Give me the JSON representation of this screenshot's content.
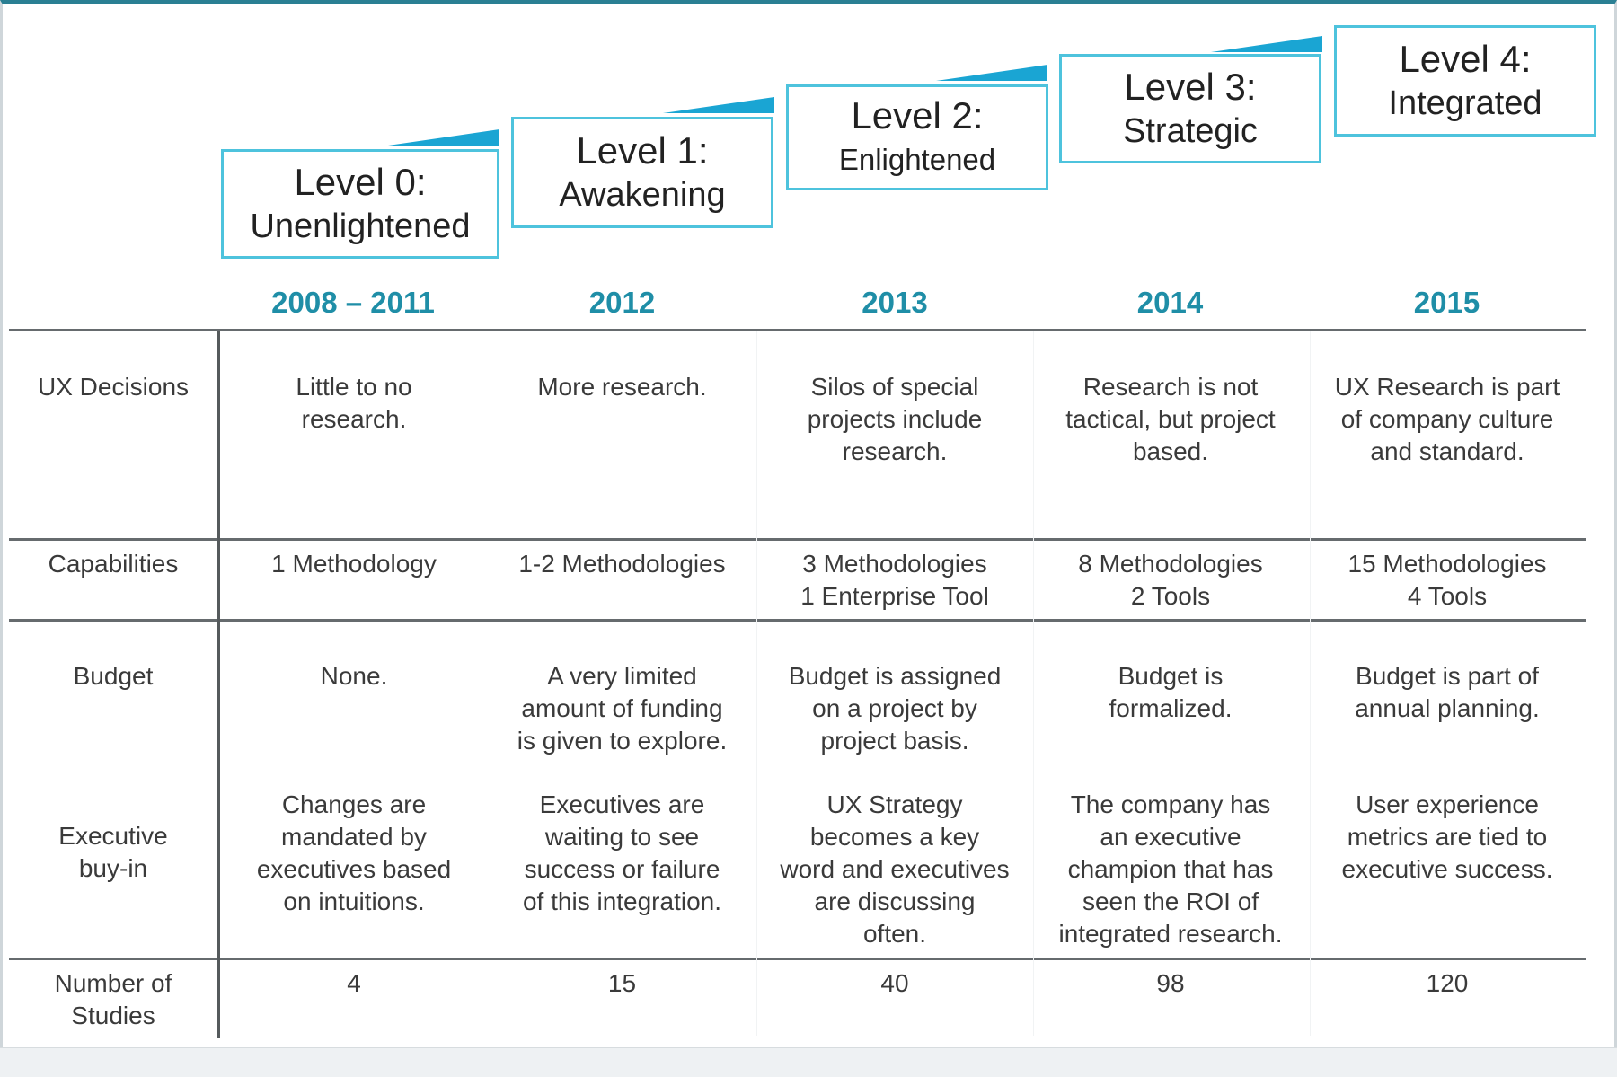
{
  "levels": [
    {
      "title": "Level 0:",
      "subtitle": "Unenlightened"
    },
    {
      "title": "Level 1:",
      "subtitle": "Awakening"
    },
    {
      "title": "Level 2:",
      "subtitle": "Enlightened"
    },
    {
      "title": "Level 3:",
      "subtitle": "Strategic"
    },
    {
      "title": "Level 4:",
      "subtitle": "Integrated"
    }
  ],
  "years": [
    "2008 – 2011",
    "2012",
    "2013",
    "2014",
    "2015"
  ],
  "rows": {
    "ux_decisions": {
      "label": "UX  Decisions",
      "cells": [
        "Little to no\nresearch.",
        "More research.",
        "Silos of special\nprojects include\nresearch.",
        "Research is not\ntactical,  but project\nbased.",
        "UX  Research is part\nof company culture\nand standard."
      ]
    },
    "capabilities": {
      "label": "Capabilities",
      "cells": [
        "1 Methodology",
        "1-2 Methodologies",
        "3 Methodologies\n1 Enterprise Tool",
        "8 Methodologies\n2 Tools",
        "15 Methodologies\n4 Tools"
      ]
    },
    "budget": {
      "label": "Budget",
      "cells": [
        "None.",
        "A very limited\namount of funding\nis given to explore.",
        "Budget is assigned\non a  project by\nproject basis.",
        "Budget is\nformalized.",
        "Budget is part of\nannual planning."
      ]
    },
    "executive_buyin": {
      "label": "Executive\nbuy-in",
      "cells": [
        "Changes are\nmandated by\nexecutives  based\non intuitions.",
        "Executives  are\nwaiting to see\nsuccess or failure\nof this integration.",
        "UX  Strategy\nbecomes a key\nword and executives\nare discussing\noften.",
        "The company has\nan executive\nchampion that has\nseen the ROI of\nintegrated research.",
        "User experience\nmetrics are tied to\nexecutive success."
      ]
    },
    "number_of_studies": {
      "label": "Number  of\nStudies",
      "cells": [
        "4",
        "15",
        "40",
        "98",
        "120"
      ]
    }
  },
  "colors": {
    "box_border": "#4ec3dd",
    "wedge": "#1aa5d3",
    "year_text": "#1f8ea7",
    "rule": "#666b6e"
  }
}
